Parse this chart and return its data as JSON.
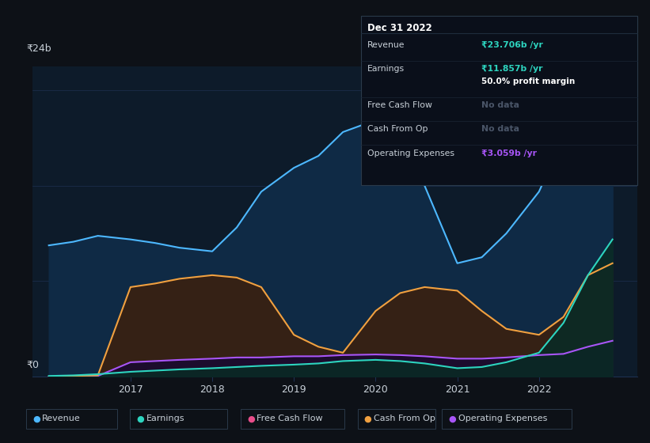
{
  "background_color": "#0d1117",
  "plot_bg_color": "#0d1b2a",
  "grid_color": "#1e3050",
  "text_color": "#c8d0d8",
  "title_color": "#ffffff",
  "y_label_24b": "₹24b",
  "y_label_0": "₹0",
  "x_ticks": [
    2017,
    2018,
    2019,
    2020,
    2021,
    2022
  ],
  "series": {
    "Revenue": {
      "color": "#4db8ff",
      "fill_color": "#0f2a45",
      "x": [
        2016.0,
        2016.3,
        2016.6,
        2017.0,
        2017.3,
        2017.6,
        2018.0,
        2018.3,
        2018.6,
        2019.0,
        2019.3,
        2019.6,
        2020.0,
        2020.3,
        2020.6,
        2021.0,
        2021.3,
        2021.6,
        2022.0,
        2022.3,
        2022.6,
        2022.9
      ],
      "y": [
        11.0,
        11.3,
        11.8,
        11.5,
        11.2,
        10.8,
        10.5,
        12.5,
        15.5,
        17.5,
        18.5,
        20.5,
        21.5,
        19.5,
        16.0,
        9.5,
        10.0,
        12.0,
        15.5,
        20.0,
        23.5,
        24.5
      ]
    },
    "Earnings": {
      "color": "#2dd4bf",
      "fill_color": "#0a2a25",
      "x": [
        2016.0,
        2016.3,
        2016.6,
        2017.0,
        2017.3,
        2017.6,
        2018.0,
        2018.3,
        2018.6,
        2019.0,
        2019.3,
        2019.6,
        2020.0,
        2020.3,
        2020.6,
        2021.0,
        2021.3,
        2021.6,
        2022.0,
        2022.3,
        2022.6,
        2022.9
      ],
      "y": [
        0.05,
        0.1,
        0.2,
        0.4,
        0.5,
        0.6,
        0.7,
        0.8,
        0.9,
        1.0,
        1.1,
        1.3,
        1.4,
        1.3,
        1.1,
        0.7,
        0.8,
        1.2,
        2.0,
        4.5,
        8.5,
        11.5
      ]
    },
    "FreeCashFlow": {
      "color": "#e84d8a",
      "x": [
        2016.0,
        2022.9
      ],
      "y": [
        0.0,
        0.0
      ]
    },
    "CashFromOp": {
      "color": "#f0a040",
      "fill_color": "#3a2010",
      "x": [
        2016.0,
        2016.3,
        2016.6,
        2017.0,
        2017.3,
        2017.6,
        2018.0,
        2018.3,
        2018.6,
        2019.0,
        2019.3,
        2019.6,
        2020.0,
        2020.3,
        2020.6,
        2021.0,
        2021.3,
        2021.6,
        2022.0,
        2022.3,
        2022.6,
        2022.9
      ],
      "y": [
        0.0,
        0.05,
        0.1,
        7.5,
        7.8,
        8.2,
        8.5,
        8.3,
        7.5,
        3.5,
        2.5,
        2.0,
        5.5,
        7.0,
        7.5,
        7.2,
        5.5,
        4.0,
        3.5,
        5.0,
        8.5,
        9.5
      ]
    },
    "OperatingExpenses": {
      "color": "#a855f7",
      "fill_color": "#1a0a30",
      "x": [
        2016.0,
        2016.3,
        2016.6,
        2017.0,
        2017.3,
        2017.6,
        2018.0,
        2018.3,
        2018.6,
        2019.0,
        2019.3,
        2019.6,
        2020.0,
        2020.3,
        2020.6,
        2021.0,
        2021.3,
        2021.6,
        2022.0,
        2022.3,
        2022.6,
        2022.9
      ],
      "y": [
        0.0,
        0.0,
        0.05,
        1.2,
        1.3,
        1.4,
        1.5,
        1.6,
        1.6,
        1.7,
        1.7,
        1.8,
        1.85,
        1.8,
        1.7,
        1.5,
        1.5,
        1.6,
        1.8,
        1.9,
        2.5,
        3.0
      ]
    }
  },
  "tooltip": {
    "date": "Dec 31 2022",
    "bg_color": "#0a0f1a",
    "border_color": "#2a3a4a",
    "rows": [
      {
        "label": "Revenue",
        "value": "₹23.706b /yr",
        "value_color": "#2dd4bf",
        "sub": null
      },
      {
        "label": "Earnings",
        "value": "₹11.857b /yr",
        "value_color": "#2dd4bf",
        "sub": "50.0% profit margin"
      },
      {
        "label": "Free Cash Flow",
        "value": "No data",
        "value_color": "#4a5568",
        "sub": null
      },
      {
        "label": "Cash From Op",
        "value": "No data",
        "value_color": "#4a5568",
        "sub": null
      },
      {
        "label": "Operating Expenses",
        "value": "₹3.059b /yr",
        "value_color": "#a855f7",
        "sub": null
      }
    ]
  },
  "legend": [
    {
      "label": "Revenue",
      "color": "#4db8ff"
    },
    {
      "label": "Earnings",
      "color": "#2dd4bf"
    },
    {
      "label": "Free Cash Flow",
      "color": "#e84d8a"
    },
    {
      "label": "Cash From Op",
      "color": "#f0a040"
    },
    {
      "label": "Operating Expenses",
      "color": "#a855f7"
    }
  ],
  "ylim": [
    0,
    26
  ],
  "xlim": [
    2015.8,
    2023.2
  ]
}
